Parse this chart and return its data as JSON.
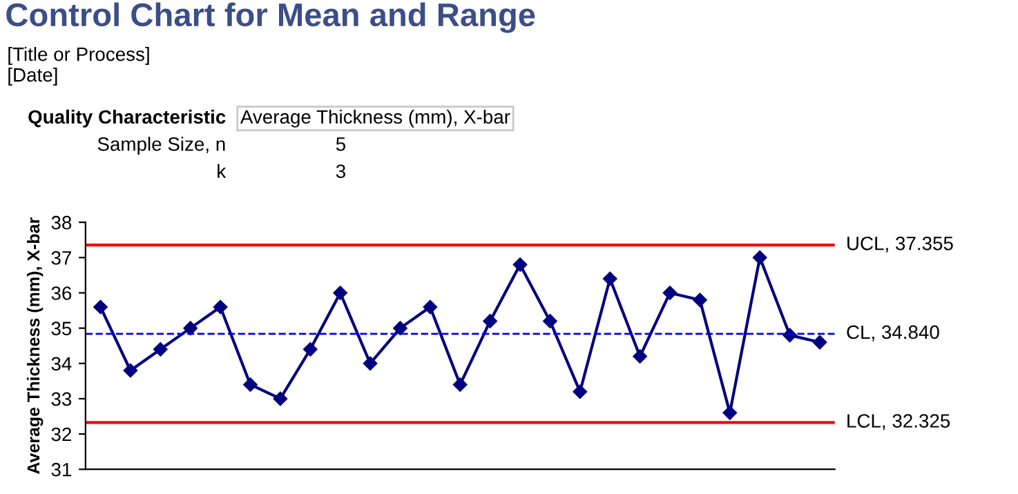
{
  "chart_data": {
    "type": "line",
    "title": "Control Chart for Mean and Range",
    "subtitle": "[Title or Process]",
    "ylabel": "Average Thickness (mm), X-bar",
    "annotations": [
      "[Date]",
      "Quality Characteristic",
      "Average Thickness (mm), X-bar",
      "Sample Size, n",
      "5",
      "k",
      "3"
    ],
    "categories": [
      null,
      null,
      null,
      null,
      null,
      null,
      null,
      null,
      null,
      null,
      null,
      null,
      null,
      null,
      null,
      null,
      null,
      null,
      null,
      null,
      null,
      null,
      null,
      null,
      null
    ],
    "series": [
      {
        "color": "#000080",
        "values": [
          35.6,
          33.8,
          34.4,
          35.0,
          35.6,
          33.4,
          33.0,
          34.4,
          36.0,
          34.0,
          35.0,
          35.6,
          33.4,
          35.2,
          36.8,
          35.2,
          33.2,
          36.4,
          34.2,
          36.0,
          35.8,
          32.6,
          37.0,
          34.8,
          34.6
        ]
      }
    ],
    "ref_lines": [
      {
        "axis": "y",
        "value": 37.355,
        "label": "UCL, 37.355",
        "color": "#ff0000",
        "line_style": "solid"
      },
      {
        "axis": "y",
        "value": 34.84,
        "label": "CL, 34.840",
        "color": "#0000ff",
        "line_style": "dashed"
      },
      {
        "axis": "y",
        "value": 32.325,
        "label": "LCL, 32.325",
        "color": "#ff0000",
        "line_style": "solid"
      }
    ],
    "ylim": [
      31,
      38
    ],
    "yticks": [
      31,
      32,
      33,
      34,
      35,
      36,
      37,
      38
    ],
    "tick_labels": "y",
    "marker": "diamond",
    "line_style": "solid",
    "grid": false,
    "legend": false
  }
}
